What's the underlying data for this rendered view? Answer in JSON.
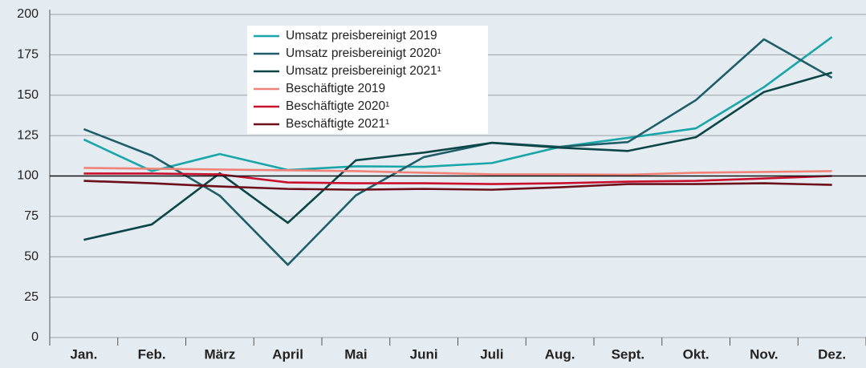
{
  "chart_data": {
    "type": "line",
    "categories": [
      "Jan.",
      "Feb.",
      "März",
      "April",
      "Mai",
      "Juni",
      "Juli",
      "Aug.",
      "Sept.",
      "Okt.",
      "Nov.",
      "Dez."
    ],
    "series": [
      {
        "name": "Umsatz preisbereinigt 2019",
        "color": "#1aa5a9",
        "values": [
          122.6,
          103,
          113.6,
          103.7,
          106,
          105.7,
          108,
          118,
          123.6,
          129.5,
          155,
          186
        ]
      },
      {
        "name": "Umsatz preisbereinigt 2020¹",
        "color": "#1f5e69",
        "values": [
          129,
          112.6,
          87.8,
          45,
          88,
          111.7,
          120.6,
          118,
          121,
          147,
          184.6,
          160.8
        ]
      },
      {
        "name": "Umsatz preisbereinigt 2021¹",
        "color": "#0c4546",
        "values": [
          60.5,
          70,
          101.7,
          71,
          109.7,
          114.5,
          120.5,
          117.5,
          115.5,
          124,
          152,
          164
        ]
      },
      {
        "name": "Beschäftigte 2019",
        "color": "#f0827a",
        "values": [
          105,
          104.5,
          104,
          103.5,
          103,
          102,
          101,
          101,
          100.8,
          102,
          102.5,
          103
        ]
      },
      {
        "name": "Beschäftigte 2020¹",
        "color": "#c8102e",
        "values": [
          101.5,
          101.5,
          101,
          96,
          95.5,
          95.5,
          95,
          95.5,
          96.5,
          97,
          98.5,
          100
        ]
      },
      {
        "name": "Beschäftigte 2021¹",
        "color": "#6b0f1a",
        "values": [
          97,
          95.5,
          93.5,
          92,
          91.5,
          92,
          91.5,
          93,
          95,
          95,
          95.5,
          94.5
        ]
      }
    ],
    "ylim": [
      0,
      200
    ],
    "yticks": [
      0,
      25,
      50,
      75,
      100,
      125,
      150,
      175,
      200
    ],
    "grid": true,
    "baseline": 100
  }
}
